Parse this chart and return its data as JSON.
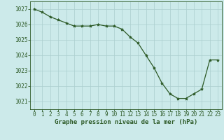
{
  "x": [
    0,
    1,
    2,
    3,
    4,
    5,
    6,
    7,
    8,
    9,
    10,
    11,
    12,
    13,
    14,
    15,
    16,
    17,
    18,
    19,
    20,
    21,
    22,
    23
  ],
  "y": [
    1027.0,
    1026.8,
    1026.5,
    1026.3,
    1026.1,
    1025.9,
    1025.9,
    1025.9,
    1026.0,
    1025.9,
    1025.9,
    1025.7,
    1025.2,
    1024.8,
    1024.0,
    1023.2,
    1022.2,
    1021.5,
    1021.2,
    1021.2,
    1021.5,
    1021.8,
    1023.7,
    1023.7
  ],
  "line_color": "#2d5a27",
  "marker": "*",
  "marker_size": 3,
  "bg_color": "#cceaea",
  "grid_color": "#aacece",
  "ylabel_ticks": [
    1021,
    1022,
    1023,
    1024,
    1025,
    1026,
    1027
  ],
  "xlabel_label": "Graphe pression niveau de la mer (hPa)",
  "ylim": [
    1020.5,
    1027.5
  ],
  "xlim": [
    -0.5,
    23.5
  ],
  "tick_color": "#2d5a27",
  "label_fontsize": 6.5,
  "tick_fontsize": 5.5
}
